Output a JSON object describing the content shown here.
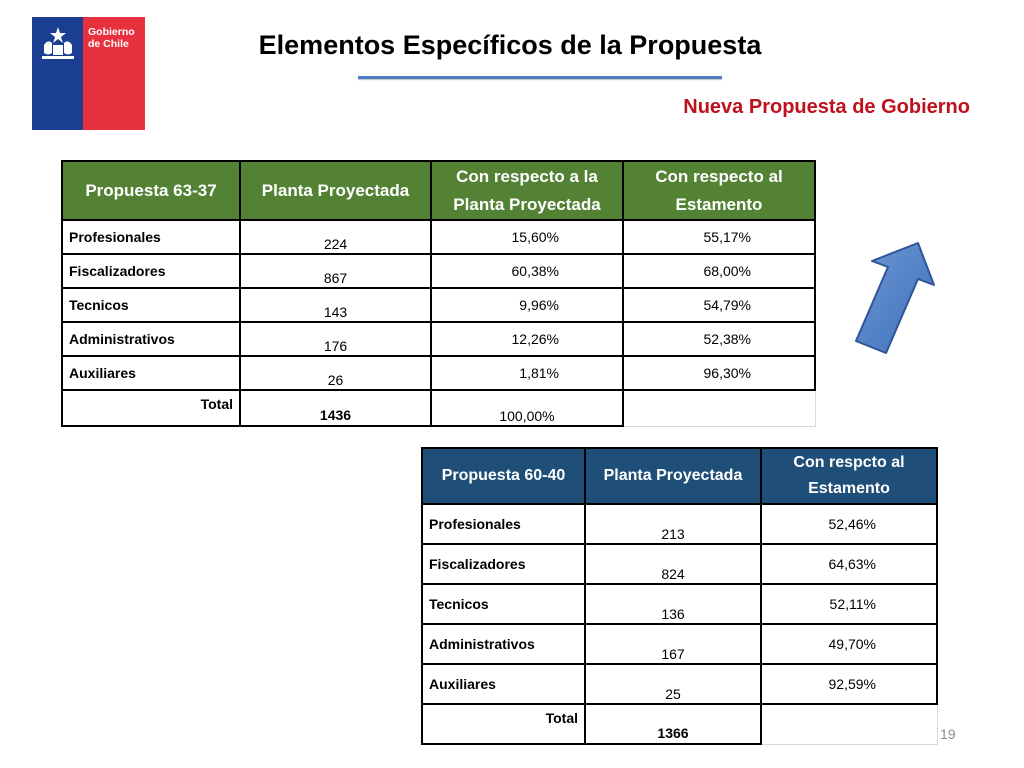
{
  "logo": {
    "line1": "Gobierno",
    "line2": "de Chile",
    "colors": {
      "blue": "#1a3e92",
      "red": "#e7313e"
    }
  },
  "title": "Elementos Específicos de la Propuesta",
  "subtitle": "Nueva Propuesta de Gobierno",
  "table1": {
    "headers": [
      "Propuesta 63-37",
      "Planta Proyectada",
      "Con respecto a la Planta Proyectada",
      "Con respecto al Estamento"
    ],
    "rows": [
      {
        "label": "Profesionales",
        "planta": "224",
        "pct_planta": "15,60%",
        "pct_estamento": "55,17%"
      },
      {
        "label": "Fiscalizadores",
        "planta": "867",
        "pct_planta": "60,38%",
        "pct_estamento": "68,00%"
      },
      {
        "label": "Tecnicos",
        "planta": "143",
        "pct_planta": "9,96%",
        "pct_estamento": "54,79%"
      },
      {
        "label": "Administrativos",
        "planta": "176",
        "pct_planta": "12,26%",
        "pct_estamento": "52,38%"
      },
      {
        "label": "Auxiliares",
        "planta": "26",
        "pct_planta": "1,81%",
        "pct_estamento": "96,30%"
      }
    ],
    "total": {
      "label": "Total",
      "planta": "1436",
      "pct_planta": "100,00%"
    },
    "header_color": "#548235"
  },
  "table2": {
    "headers": [
      "Propuesta 60-40",
      "Planta Proyectada",
      "Con respcto al Estamento"
    ],
    "rows": [
      {
        "label": "Profesionales",
        "planta": "213",
        "pct_estamento": "52,46%"
      },
      {
        "label": "Fiscalizadores",
        "planta": "824",
        "pct_estamento": "64,63%"
      },
      {
        "label": "Tecnicos",
        "planta": "136",
        "pct_estamento": "52,11%"
      },
      {
        "label": "Administrativos",
        "planta": "167",
        "pct_estamento": "49,70%"
      },
      {
        "label": "Auxiliares",
        "planta": "25",
        "pct_estamento": "92,59%"
      }
    ],
    "total": {
      "label": "Total",
      "planta": "1366"
    },
    "header_color": "#1f4e79"
  },
  "arrow": {
    "icon": "up-right-arrow-icon",
    "color": "#4a7cc7"
  },
  "page_number": "19"
}
